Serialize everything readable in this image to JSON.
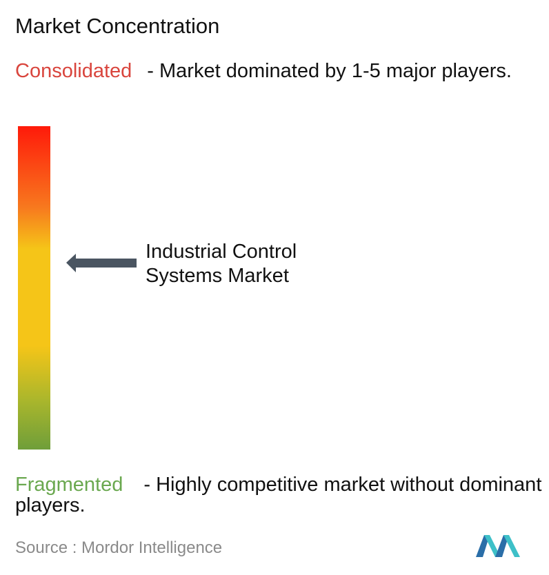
{
  "title": "Market Concentration",
  "consolidated": {
    "label": "Consolidated",
    "description": "- Market dominated by 1-5 major players."
  },
  "market": {
    "label": "Industrial Control Systems Market"
  },
  "fragmented": {
    "label": "Fragmented",
    "description": "- Highly competitive market without dominant players."
  },
  "source": "Source :  Mordor Intelligence"
}
